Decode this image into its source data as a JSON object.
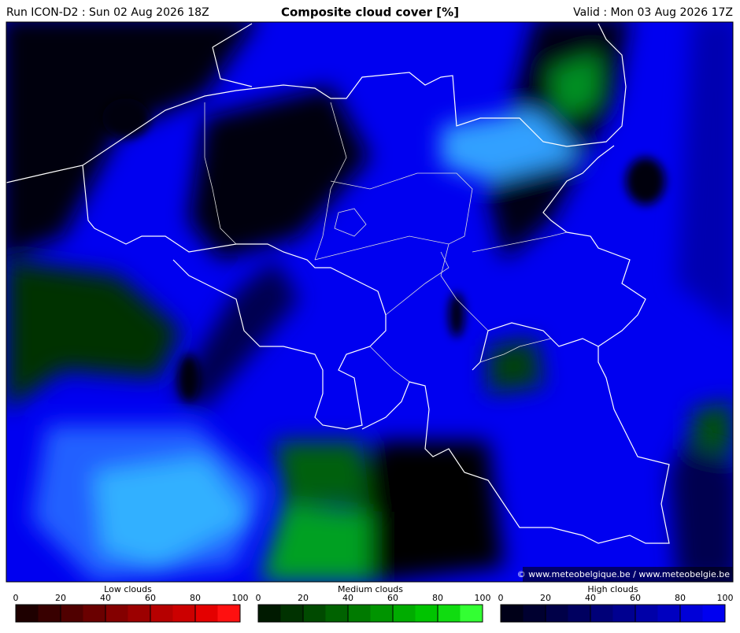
{
  "header": {
    "run": "Run ICON-D2 : Sun 02 Aug 2026 18Z",
    "title": "Composite cloud cover [%]",
    "valid": "Valid : Mon 03 Aug 2026 17Z"
  },
  "map": {
    "credit": "© www.meteobelgique.be / www.meteobelgie.be"
  },
  "colorbars": [
    {
      "title": "Low clouds",
      "range": [
        0,
        100
      ],
      "ticks": [
        0,
        20,
        40,
        60,
        80,
        100
      ],
      "colors": [
        "#1e0000",
        "#380000",
        "#500000",
        "#6a0000",
        "#840000",
        "#9c0000",
        "#b60000",
        "#cc0000",
        "#e40000",
        "#ff1010"
      ]
    },
    {
      "title": "Medium clouds",
      "range": [
        0,
        100
      ],
      "ticks": [
        0,
        20,
        40,
        60,
        80,
        100
      ],
      "colors": [
        "#001a00",
        "#003200",
        "#004a00",
        "#006200",
        "#007a00",
        "#009400",
        "#00ac00",
        "#00c400",
        "#10dc10",
        "#33ff33"
      ]
    },
    {
      "title": "High clouds",
      "range": [
        0,
        100
      ],
      "ticks": [
        0,
        20,
        40,
        60,
        80,
        100
      ],
      "colors": [
        "#000018",
        "#000030",
        "#000048",
        "#000060",
        "#000078",
        "#000090",
        "#0000a8",
        "#0000c0",
        "#0000d8",
        "#0000f0"
      ]
    }
  ]
}
